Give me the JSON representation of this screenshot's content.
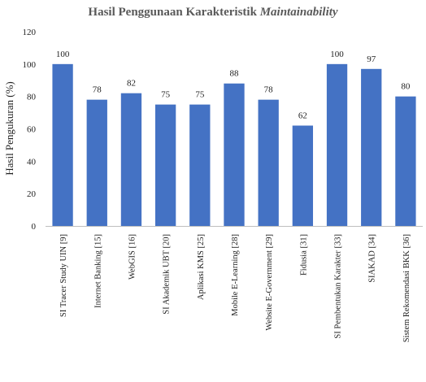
{
  "chart_data": {
    "type": "bar",
    "title_main": "Hasil Penggunaan Karakteristik ",
    "title_emph": "Maintainability",
    "ylabel": "Hasil Pengukuran (%)",
    "xlabel": "",
    "ylim": [
      0,
      120
    ],
    "yticks": [
      "0",
      "20",
      "40",
      "60",
      "80",
      "100",
      "120"
    ],
    "categories": [
      "SI Tracer Study UIN [9]",
      "Internet Banking [15]",
      "WebGIS [16]",
      "SI Akademik UBT [20]",
      "Aplikasi KMS [25]",
      "Mobile E-Learning [28]",
      "Website E-Government [29]",
      "Fidusia [31]",
      "SI Pembentukan Karakter [33]",
      "SIAKAD [34]",
      "Sistem Rekomendasi BKK [36]"
    ],
    "values": [
      100,
      78,
      82,
      75,
      75,
      88,
      78,
      62,
      100,
      97,
      80
    ],
    "value_labels": [
      "100",
      "78",
      "82",
      "75",
      "75",
      "88",
      "78",
      "62",
      "100",
      "97",
      "80"
    ],
    "bar_color": "#4472C4",
    "grid": false,
    "legend": "none"
  }
}
